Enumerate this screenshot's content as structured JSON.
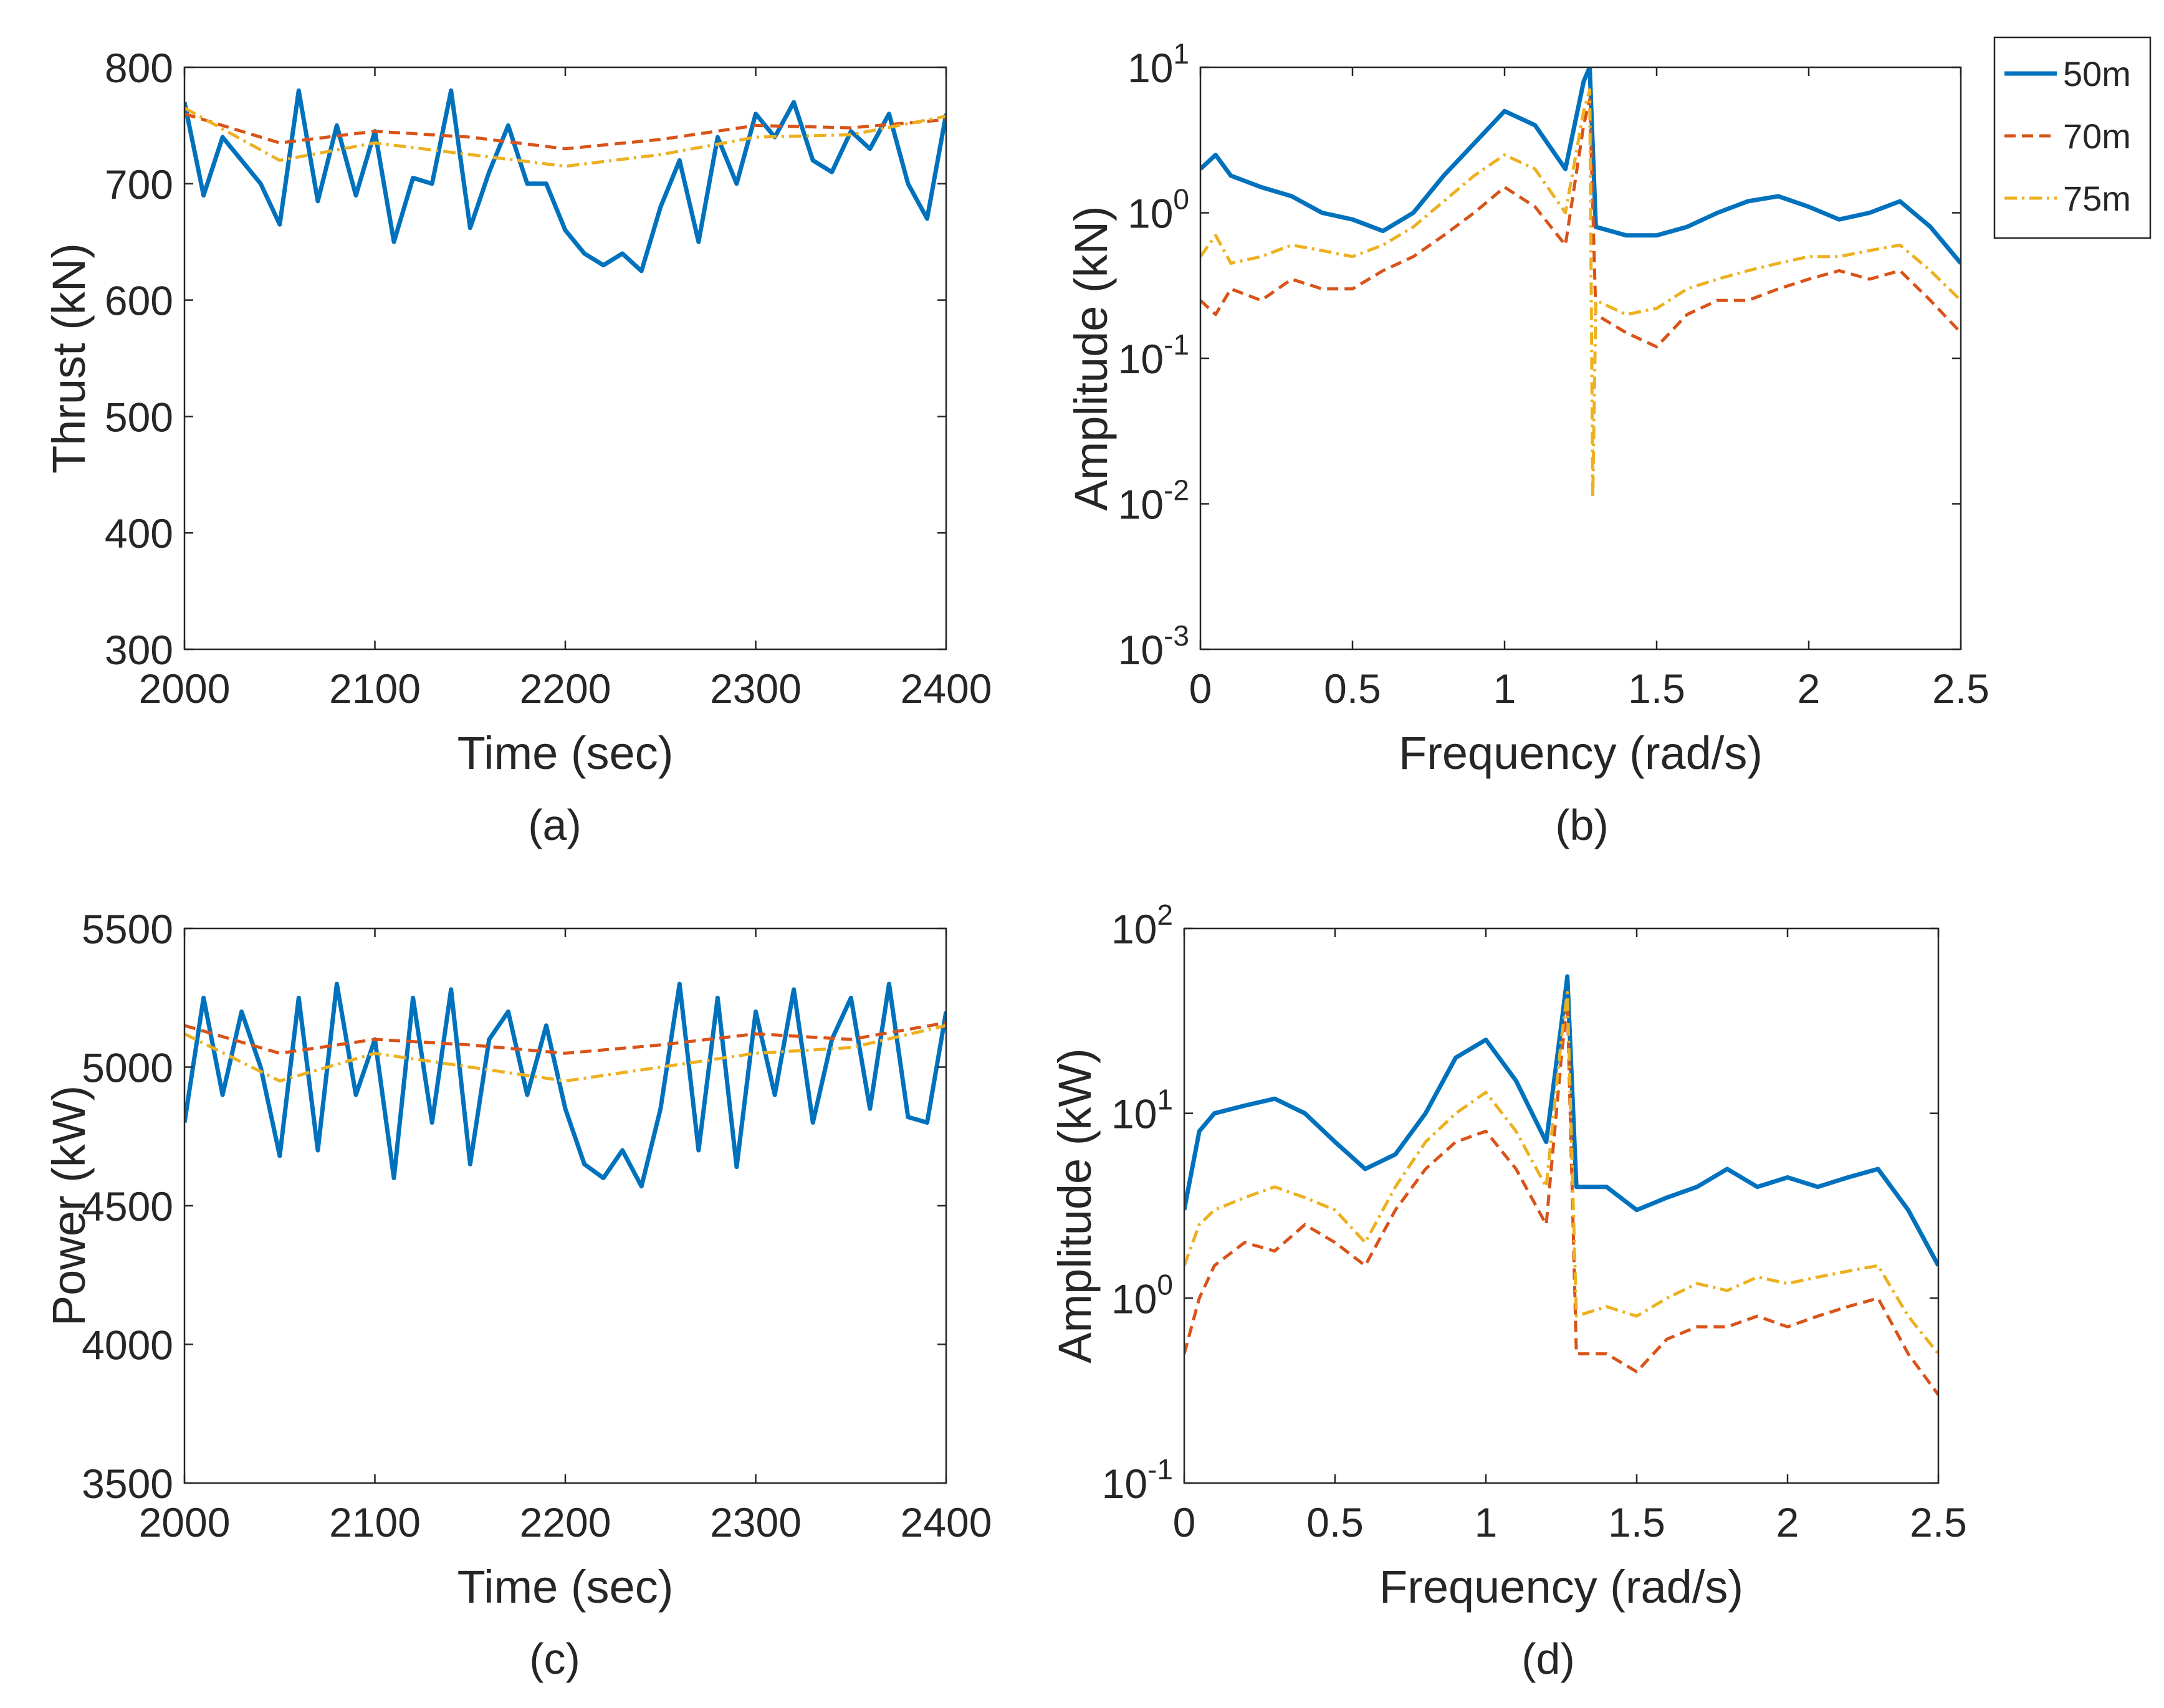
{
  "figure_title": "Thrust and power time series with amplitude spectra",
  "legend": {
    "entries": [
      {
        "label": "50m",
        "color": "#0072BD",
        "style": "solid"
      },
      {
        "label": "70m",
        "color": "#D95319",
        "style": "dashed"
      },
      {
        "label": "75m",
        "color": "#EDB120",
        "style": "dashdot"
      }
    ]
  },
  "chart_data": [
    {
      "id": "a",
      "type": "line",
      "panel_label": "(a)",
      "xlabel": "Time (sec)",
      "ylabel": "Thrust (kN)",
      "xlim": [
        2000,
        2400
      ],
      "ylim": [
        300,
        800
      ],
      "xticks": [
        2000,
        2100,
        2200,
        2300,
        2400
      ],
      "yticks": [
        300,
        400,
        500,
        600,
        700,
        800
      ],
      "yscale": "linear",
      "series": [
        {
          "name": "50m",
          "x": [
            2000,
            2010,
            2020,
            2030,
            2040,
            2050,
            2060,
            2070,
            2080,
            2090,
            2100,
            2110,
            2120,
            2130,
            2140,
            2150,
            2160,
            2170,
            2180,
            2190,
            2200,
            2210,
            2220,
            2230,
            2240,
            2250,
            2260,
            2270,
            2280,
            2290,
            2300,
            2310,
            2320,
            2330,
            2340,
            2350,
            2360,
            2370,
            2380,
            2390,
            2400
          ],
          "y": [
            770,
            690,
            740,
            720,
            700,
            665,
            780,
            685,
            750,
            690,
            745,
            650,
            705,
            700,
            780,
            662,
            710,
            750,
            700,
            700,
            660,
            640,
            630,
            640,
            625,
            680,
            720,
            650,
            740,
            700,
            760,
            740,
            770,
            720,
            710,
            745,
            730,
            760,
            700,
            670,
            760
          ]
        },
        {
          "name": "70m",
          "x": [
            2000,
            2050,
            2100,
            2150,
            2200,
            2250,
            2300,
            2350,
            2400
          ],
          "y": [
            760,
            735,
            745,
            740,
            730,
            738,
            750,
            748,
            755
          ]
        },
        {
          "name": "75m",
          "x": [
            2000,
            2050,
            2100,
            2150,
            2200,
            2250,
            2300,
            2350,
            2400
          ],
          "y": [
            765,
            720,
            735,
            725,
            715,
            725,
            740,
            742,
            758
          ]
        }
      ]
    },
    {
      "id": "b",
      "type": "line",
      "panel_label": "(b)",
      "xlabel": "Frequency (rad/s)",
      "ylabel": "Amplitude (kN)",
      "xlim": [
        0,
        2.5
      ],
      "ylim": [
        0.001,
        10
      ],
      "xticks": [
        0,
        0.5,
        1,
        1.5,
        2,
        2.5
      ],
      "yticks": [
        0.001,
        0.01,
        0.1,
        1,
        10
      ],
      "ytick_exponents": [
        "-3",
        "-2",
        "-1",
        "0",
        "1"
      ],
      "yscale": "log",
      "series": [
        {
          "name": "50m",
          "x": [
            0,
            0.05,
            0.1,
            0.2,
            0.3,
            0.4,
            0.5,
            0.6,
            0.7,
            0.8,
            0.9,
            1.0,
            1.1,
            1.2,
            1.26,
            1.28,
            1.3,
            1.4,
            1.5,
            1.6,
            1.7,
            1.8,
            1.9,
            2.0,
            2.1,
            2.2,
            2.3,
            2.4,
            2.5
          ],
          "y": [
            2.0,
            2.5,
            1.8,
            1.5,
            1.3,
            1.0,
            0.9,
            0.75,
            1.0,
            1.8,
            3.0,
            5.0,
            4.0,
            2.0,
            8.0,
            10.0,
            0.8,
            0.7,
            0.7,
            0.8,
            1.0,
            1.2,
            1.3,
            1.1,
            0.9,
            1.0,
            1.2,
            0.8,
            0.45
          ]
        },
        {
          "name": "70m",
          "x": [
            0,
            0.05,
            0.1,
            0.2,
            0.3,
            0.4,
            0.5,
            0.6,
            0.7,
            0.8,
            0.9,
            1.0,
            1.1,
            1.2,
            1.26,
            1.28,
            1.3,
            1.4,
            1.5,
            1.6,
            1.7,
            1.8,
            1.9,
            2.0,
            2.1,
            2.2,
            2.3,
            2.4,
            2.5
          ],
          "y": [
            0.25,
            0.2,
            0.3,
            0.25,
            0.35,
            0.3,
            0.3,
            0.4,
            0.5,
            0.7,
            1.0,
            1.5,
            1.1,
            0.6,
            4.0,
            6.0,
            0.2,
            0.15,
            0.12,
            0.2,
            0.25,
            0.25,
            0.3,
            0.35,
            0.4,
            0.35,
            0.4,
            0.25,
            0.15
          ]
        },
        {
          "name": "75m",
          "x": [
            0,
            0.05,
            0.1,
            0.2,
            0.3,
            0.4,
            0.5,
            0.6,
            0.7,
            0.8,
            0.9,
            1.0,
            1.1,
            1.2,
            1.26,
            1.28,
            1.29,
            1.3,
            1.4,
            1.5,
            1.6,
            1.7,
            1.8,
            1.9,
            2.0,
            2.1,
            2.2,
            2.3,
            2.4,
            2.5
          ],
          "y": [
            0.5,
            0.7,
            0.45,
            0.5,
            0.6,
            0.55,
            0.5,
            0.6,
            0.8,
            1.2,
            1.8,
            2.5,
            2.0,
            1.0,
            5.0,
            7.0,
            0.011,
            0.25,
            0.2,
            0.22,
            0.3,
            0.35,
            0.4,
            0.45,
            0.5,
            0.5,
            0.55,
            0.6,
            0.4,
            0.25
          ]
        }
      ]
    },
    {
      "id": "c",
      "type": "line",
      "panel_label": "(c)",
      "xlabel": "Time (sec)",
      "ylabel": "Power (kW)",
      "xlim": [
        2000,
        2400
      ],
      "ylim": [
        3500,
        5500
      ],
      "xticks": [
        2000,
        2100,
        2200,
        2300,
        2400
      ],
      "yticks": [
        3500,
        4000,
        4500,
        5000,
        5500
      ],
      "yscale": "linear",
      "series": [
        {
          "name": "50m",
          "x": [
            2000,
            2010,
            2020,
            2030,
            2040,
            2050,
            2060,
            2070,
            2080,
            2090,
            2100,
            2110,
            2120,
            2130,
            2140,
            2150,
            2160,
            2170,
            2180,
            2190,
            2200,
            2210,
            2220,
            2230,
            2240,
            2250,
            2260,
            2270,
            2280,
            2290,
            2300,
            2310,
            2320,
            2330,
            2340,
            2350,
            2360,
            2370,
            2380,
            2390,
            2400
          ],
          "y": [
            4800,
            5250,
            4900,
            5200,
            5000,
            4680,
            5250,
            4700,
            5300,
            4900,
            5100,
            4600,
            5250,
            4800,
            5280,
            4650,
            5100,
            5200,
            4900,
            5150,
            4850,
            4650,
            4600,
            4700,
            4570,
            4850,
            5300,
            4700,
            5250,
            4640,
            5200,
            4900,
            5280,
            4800,
            5100,
            5250,
            4850,
            5300,
            4820,
            4800,
            5200
          ]
        },
        {
          "name": "70m",
          "x": [
            2000,
            2050,
            2100,
            2150,
            2200,
            2250,
            2300,
            2350,
            2400
          ],
          "y": [
            5150,
            5050,
            5100,
            5080,
            5050,
            5080,
            5120,
            5100,
            5160
          ]
        },
        {
          "name": "75m",
          "x": [
            2000,
            2050,
            2100,
            2150,
            2200,
            2250,
            2300,
            2350,
            2400
          ],
          "y": [
            5120,
            4950,
            5050,
            5000,
            4950,
            5000,
            5050,
            5070,
            5150
          ]
        }
      ]
    },
    {
      "id": "d",
      "type": "line",
      "panel_label": "(d)",
      "xlabel": "Frequency (rad/s)",
      "ylabel": "Amplitude (kW)",
      "xlim": [
        0,
        2.5
      ],
      "ylim": [
        0.1,
        100
      ],
      "xticks": [
        0,
        0.5,
        1,
        1.5,
        2,
        2.5
      ],
      "yticks": [
        0.1,
        1,
        10,
        100
      ],
      "ytick_exponents": [
        "-1",
        "0",
        "1",
        "2"
      ],
      "yscale": "log",
      "series": [
        {
          "name": "50m",
          "x": [
            0,
            0.05,
            0.1,
            0.2,
            0.3,
            0.4,
            0.5,
            0.6,
            0.7,
            0.8,
            0.9,
            1.0,
            1.1,
            1.2,
            1.25,
            1.27,
            1.3,
            1.4,
            1.5,
            1.6,
            1.7,
            1.8,
            1.9,
            2.0,
            2.1,
            2.2,
            2.3,
            2.4,
            2.5
          ],
          "y": [
            3.0,
            8.0,
            10.0,
            11.0,
            12.0,
            10.0,
            7.0,
            5.0,
            6.0,
            10.0,
            20.0,
            25.0,
            15.0,
            7.0,
            30.0,
            55.0,
            4.0,
            4.0,
            3.0,
            3.5,
            4.0,
            5.0,
            4.0,
            4.5,
            4.0,
            4.5,
            5.0,
            3.0,
            1.5
          ]
        },
        {
          "name": "70m",
          "x": [
            0,
            0.05,
            0.1,
            0.2,
            0.3,
            0.4,
            0.5,
            0.6,
            0.7,
            0.8,
            0.9,
            1.0,
            1.1,
            1.2,
            1.25,
            1.27,
            1.3,
            1.4,
            1.5,
            1.6,
            1.7,
            1.8,
            1.9,
            2.0,
            2.1,
            2.2,
            2.3,
            2.4,
            2.5
          ],
          "y": [
            0.5,
            1.0,
            1.5,
            2.0,
            1.8,
            2.5,
            2.0,
            1.5,
            3.0,
            5.0,
            7.0,
            8.0,
            5.0,
            2.5,
            20.0,
            40.0,
            0.5,
            0.5,
            0.4,
            0.6,
            0.7,
            0.7,
            0.8,
            0.7,
            0.8,
            0.9,
            1.0,
            0.5,
            0.3
          ]
        },
        {
          "name": "75m",
          "x": [
            0,
            0.05,
            0.1,
            0.2,
            0.3,
            0.4,
            0.5,
            0.6,
            0.7,
            0.8,
            0.9,
            1.0,
            1.1,
            1.2,
            1.25,
            1.27,
            1.3,
            1.4,
            1.5,
            1.6,
            1.7,
            1.8,
            1.9,
            2.0,
            2.1,
            2.2,
            2.3,
            2.4,
            2.5
          ],
          "y": [
            1.5,
            2.5,
            3.0,
            3.5,
            4.0,
            3.5,
            3.0,
            2.0,
            4.0,
            7.0,
            10.0,
            13.0,
            8.0,
            4.0,
            25.0,
            45.0,
            0.8,
            0.9,
            0.8,
            1.0,
            1.2,
            1.1,
            1.3,
            1.2,
            1.3,
            1.4,
            1.5,
            0.8,
            0.5
          ]
        }
      ]
    }
  ]
}
